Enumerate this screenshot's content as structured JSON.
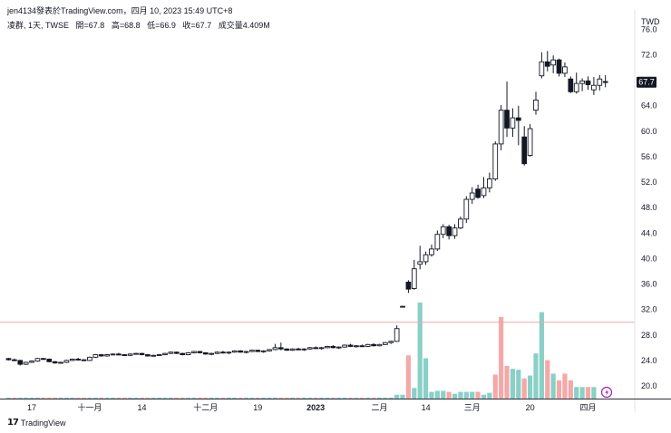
{
  "header": {
    "line1": "jen4134發表於TradingView.com，四月 10, 2023 15:49 UTC+8",
    "symbol": "凌群, 1天, TWSE",
    "open_label": "開=67.8",
    "high_label": "高=68.8",
    "low_label": "低=66.9",
    "close_label": "收=67.7",
    "volume_label": "成交量4.409M"
  },
  "currency": "TWD",
  "brand": "TradingView",
  "last_price_label": "67.7",
  "colors": {
    "up_volume": "#89d0c7",
    "down_volume": "#f4a9a8",
    "horizontal_line": "#f0a8a8",
    "last_price_badge": "#131722",
    "alert_icon": "#9c27b0"
  },
  "chart_data": {
    "type": "candlestick",
    "y_axis": {
      "ticks": [
        20.0,
        24.0,
        28.0,
        32.0,
        36.0,
        40.0,
        44.0,
        48.0,
        52.0,
        56.0,
        60.0,
        64.0,
        68.0,
        72.0,
        76.0
      ],
      "tick_labels": [
        "20.0",
        "24.0",
        "28.0",
        "32.0",
        "36.0",
        "40.0",
        "44.0",
        "48.0",
        "52.0",
        "56.0",
        "60.0",
        "64.0",
        "68.0",
        "72.0",
        "76.0"
      ],
      "range": [
        18.0,
        77.0
      ]
    },
    "x_axis": {
      "tick_labels": [
        "17",
        "十一月",
        "14",
        "十二月",
        "19",
        "2023",
        "二月",
        "14",
        "三月",
        "20",
        "四月"
      ],
      "tick_index": [
        4,
        14,
        23,
        34,
        43,
        53,
        64,
        72,
        80,
        90,
        100
      ]
    },
    "horizontal_line_price": 30.0,
    "last_price": 67.7,
    "candles": [
      [
        24.3,
        24.4,
        24.0,
        24.1
      ],
      [
        24.1,
        24.3,
        23.9,
        24.0
      ],
      [
        24.0,
        24.1,
        23.2,
        23.4
      ],
      [
        23.4,
        23.8,
        23.3,
        23.7
      ],
      [
        23.7,
        24.0,
        23.6,
        23.9
      ],
      [
        23.9,
        24.4,
        23.8,
        24.3
      ],
      [
        24.3,
        24.4,
        24.1,
        24.2
      ],
      [
        24.2,
        24.3,
        23.7,
        23.8
      ],
      [
        23.8,
        23.9,
        23.5,
        23.6
      ],
      [
        23.6,
        23.8,
        23.5,
        23.7
      ],
      [
        23.7,
        24.1,
        23.6,
        24.0
      ],
      [
        24.0,
        24.3,
        23.9,
        24.2
      ],
      [
        24.2,
        24.4,
        24.0,
        24.1
      ],
      [
        24.1,
        24.2,
        23.9,
        24.0
      ],
      [
        24.0,
        24.6,
        23.9,
        24.5
      ],
      [
        24.5,
        25.0,
        24.4,
        24.9
      ],
      [
        24.9,
        25.0,
        24.6,
        24.7
      ],
      [
        24.7,
        25.0,
        24.6,
        24.9
      ],
      [
        24.9,
        25.1,
        24.8,
        25.0
      ],
      [
        25.0,
        25.2,
        24.8,
        24.9
      ],
      [
        24.9,
        25.0,
        24.7,
        24.8
      ],
      [
        24.8,
        25.1,
        24.7,
        25.0
      ],
      [
        25.0,
        25.2,
        24.9,
        25.1
      ],
      [
        25.1,
        25.2,
        24.8,
        24.9
      ],
      [
        24.9,
        25.0,
        24.6,
        24.7
      ],
      [
        24.7,
        24.9,
        24.6,
        24.8
      ],
      [
        24.8,
        25.0,
        24.7,
        24.9
      ],
      [
        24.9,
        25.2,
        24.8,
        25.1
      ],
      [
        25.1,
        25.4,
        25.0,
        25.3
      ],
      [
        25.3,
        25.4,
        25.0,
        25.1
      ],
      [
        25.1,
        25.2,
        24.8,
        24.9
      ],
      [
        24.9,
        25.3,
        24.8,
        25.2
      ],
      [
        25.2,
        25.5,
        25.1,
        25.4
      ],
      [
        25.4,
        25.5,
        25.1,
        25.2
      ],
      [
        25.2,
        25.3,
        24.9,
        25.0
      ],
      [
        25.0,
        25.2,
        24.8,
        25.1
      ],
      [
        25.1,
        25.4,
        25.0,
        25.3
      ],
      [
        25.3,
        25.5,
        25.1,
        25.2
      ],
      [
        25.2,
        25.4,
        25.0,
        25.3
      ],
      [
        25.3,
        25.6,
        25.2,
        25.5
      ],
      [
        25.5,
        25.6,
        25.2,
        25.3
      ],
      [
        25.3,
        25.5,
        25.1,
        25.4
      ],
      [
        25.4,
        25.7,
        25.3,
        25.6
      ],
      [
        25.6,
        25.7,
        25.3,
        25.4
      ],
      [
        25.4,
        25.6,
        25.2,
        25.5
      ],
      [
        25.5,
        25.8,
        25.4,
        25.7
      ],
      [
        25.7,
        26.6,
        25.6,
        26.0
      ],
      [
        26.0,
        26.8,
        25.6,
        25.8
      ],
      [
        25.8,
        25.9,
        25.5,
        25.6
      ],
      [
        25.6,
        25.9,
        25.5,
        25.8
      ],
      [
        25.8,
        26.0,
        25.6,
        25.7
      ],
      [
        25.7,
        25.9,
        25.5,
        25.8
      ],
      [
        25.8,
        26.1,
        25.7,
        26.0
      ],
      [
        26.0,
        26.2,
        25.8,
        25.9
      ],
      [
        25.9,
        26.1,
        25.7,
        26.0
      ],
      [
        26.0,
        26.3,
        25.9,
        26.2
      ],
      [
        26.2,
        26.4,
        25.9,
        26.0
      ],
      [
        26.0,
        26.2,
        25.8,
        26.1
      ],
      [
        26.1,
        26.5,
        26.0,
        26.4
      ],
      [
        26.4,
        26.6,
        26.1,
        26.2
      ],
      [
        26.2,
        26.4,
        26.0,
        26.3
      ],
      [
        26.3,
        26.5,
        26.1,
        26.2
      ],
      [
        26.2,
        26.6,
        26.1,
        26.5
      ],
      [
        26.5,
        26.7,
        26.2,
        26.3
      ],
      [
        26.3,
        26.6,
        26.2,
        26.5
      ],
      [
        26.5,
        26.9,
        26.4,
        26.8
      ],
      [
        26.8,
        27.1,
        26.6,
        27.0
      ],
      [
        27.0,
        29.5,
        26.9,
        29.0
      ],
      [
        32.5,
        32.6,
        32.3,
        32.5
      ],
      [
        36.3,
        36.6,
        34.6,
        35.2
      ],
      [
        35.3,
        39.8,
        35.1,
        38.4
      ],
      [
        39.1,
        42.0,
        38.3,
        39.5
      ],
      [
        39.5,
        41.1,
        39.0,
        40.6
      ],
      [
        40.6,
        42.2,
        40.3,
        41.5
      ],
      [
        41.5,
        44.4,
        41.2,
        43.8
      ],
      [
        43.8,
        45.4,
        43.2,
        45.0
      ],
      [
        45.0,
        45.3,
        43.0,
        43.6
      ],
      [
        43.6,
        45.4,
        43.1,
        44.8
      ],
      [
        44.8,
        46.6,
        44.6,
        46.2
      ],
      [
        46.2,
        49.8,
        45.6,
        49.3
      ],
      [
        49.3,
        51.2,
        48.6,
        50.3
      ],
      [
        50.9,
        51.6,
        49.4,
        49.6
      ],
      [
        49.9,
        52.8,
        49.5,
        51.1
      ],
      [
        51.1,
        53.5,
        50.4,
        52.5
      ],
      [
        52.5,
        58.4,
        52.2,
        58.0
      ],
      [
        58.0,
        64.1,
        57.0,
        63.3
      ],
      [
        63.3,
        67.8,
        59.1,
        60.5
      ],
      [
        60.5,
        63.6,
        59.1,
        62.1
      ],
      [
        62.1,
        64.0,
        57.8,
        61.7
      ],
      [
        59.1,
        60.8,
        54.6,
        54.9
      ],
      [
        56.2,
        61.1,
        56.0,
        60.4
      ],
      [
        63.3,
        66.2,
        62.6,
        64.9
      ],
      [
        68.7,
        72.4,
        68.3,
        70.9
      ],
      [
        70.9,
        72.6,
        69.4,
        70.2
      ],
      [
        70.4,
        71.9,
        69.1,
        71.2
      ],
      [
        71.2,
        71.4,
        68.6,
        69.1
      ],
      [
        69.1,
        70.8,
        68.5,
        70.1
      ],
      [
        68.2,
        68.6,
        66.0,
        66.2
      ],
      [
        66.2,
        69.2,
        65.9,
        67.5
      ],
      [
        67.5,
        68.3,
        66.3,
        67.9
      ],
      [
        67.9,
        68.6,
        66.5,
        67.3
      ],
      [
        66.5,
        68.5,
        65.7,
        67.2
      ],
      [
        67.2,
        68.8,
        66.4,
        68.2
      ],
      [
        67.8,
        68.8,
        66.9,
        67.7
      ]
    ],
    "volume_ratio": [
      0.01,
      0.01,
      0.01,
      0.01,
      0.01,
      0.01,
      0.01,
      0.01,
      0.01,
      0.01,
      0.01,
      0.01,
      0.01,
      0.01,
      0.01,
      0.01,
      0.01,
      0.01,
      0.01,
      0.01,
      0.01,
      0.01,
      0.01,
      0.01,
      0.01,
      0.01,
      0.01,
      0.01,
      0.01,
      0.01,
      0.01,
      0.01,
      0.01,
      0.01,
      0.01,
      0.01,
      0.01,
      0.01,
      0.01,
      0.01,
      0.01,
      0.01,
      0.01,
      0.01,
      0.01,
      0.01,
      0.01,
      0.01,
      0.01,
      0.01,
      0.01,
      0.01,
      0.01,
      0.01,
      0.01,
      0.01,
      0.01,
      0.01,
      0.01,
      0.01,
      0.01,
      0.01,
      0.01,
      0.01,
      0.01,
      0.01,
      0.01,
      0.04,
      0.04,
      0.45,
      0.11,
      1.0,
      0.42,
      0.07,
      0.08,
      0.08,
      0.07,
      0.05,
      0.07,
      0.07,
      0.07,
      0.07,
      0.04,
      0.06,
      0.25,
      0.85,
      0.34,
      0.31,
      0.3,
      0.21,
      0.24,
      0.47,
      0.9,
      0.4,
      0.26,
      0.19,
      0.26,
      0.19,
      0.12,
      0.12,
      0.12,
      0.12
    ],
    "volume_up": [
      1,
      0,
      1,
      1,
      1,
      1,
      0,
      0,
      0,
      1,
      1,
      1,
      0,
      0,
      1,
      1,
      0,
      1,
      1,
      0,
      0,
      1,
      1,
      0,
      0,
      1,
      1,
      1,
      1,
      0,
      0,
      1,
      1,
      0,
      0,
      1,
      1,
      0,
      1,
      1,
      0,
      1,
      1,
      0,
      1,
      1,
      1,
      0,
      0,
      1,
      0,
      1,
      1,
      0,
      1,
      1,
      0,
      1,
      1,
      0,
      1,
      0,
      1,
      0,
      1,
      1,
      1,
      1,
      1,
      0,
      1,
      1,
      1,
      1,
      1,
      1,
      0,
      1,
      1,
      1,
      1,
      0,
      1,
      1,
      0,
      0,
      0,
      1,
      1,
      0,
      1,
      1,
      1,
      0,
      1,
      0,
      0,
      0,
      1,
      1,
      0,
      1
    ]
  }
}
